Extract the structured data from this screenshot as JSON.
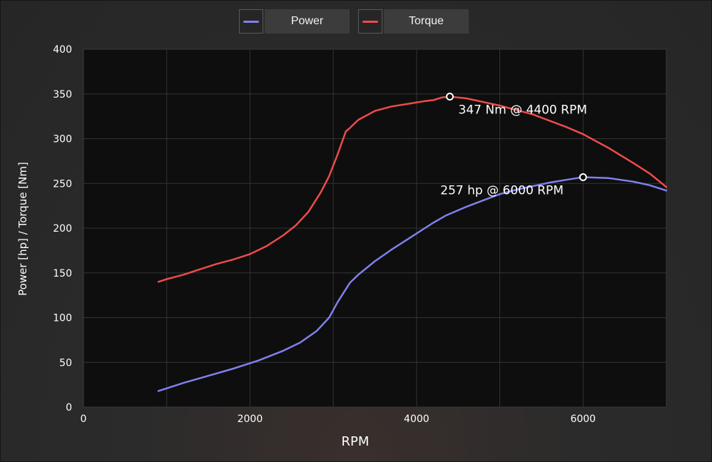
{
  "legend": [
    {
      "label": "Power",
      "color": "#8080ee"
    },
    {
      "label": "Torque",
      "color": "#ee4b4b"
    }
  ],
  "chart_data": {
    "type": "line",
    "xlabel": "RPM",
    "ylabel": "Power [hp] / Torque [Nm]",
    "xlim": [
      0,
      7000
    ],
    "ylim": [
      0,
      400
    ],
    "xticks": [
      0,
      2000,
      4000,
      6000
    ],
    "yticks": [
      0,
      50,
      100,
      150,
      200,
      250,
      300,
      350,
      400
    ],
    "grid": true,
    "legend_position": "top-center",
    "series": [
      {
        "name": "Power",
        "color": "#8080ee",
        "x": [
          900,
          1200,
          1500,
          1800,
          2100,
          2400,
          2600,
          2800,
          2950,
          3050,
          3200,
          3300,
          3500,
          3700,
          3900,
          4100,
          4200,
          4350,
          4600,
          4800,
          5000,
          5200,
          5400,
          5600,
          5800,
          6000,
          6300,
          6600,
          6800,
          7000
        ],
        "y": [
          18,
          27,
          35,
          43,
          52,
          63,
          72,
          85,
          100,
          117,
          139,
          148,
          163,
          176,
          188,
          200,
          206,
          214,
          224,
          231,
          238,
          243,
          247,
          251,
          254,
          257,
          256,
          252,
          248,
          242
        ]
      },
      {
        "name": "Torque",
        "color": "#ee4b4b",
        "x": [
          900,
          1000,
          1200,
          1400,
          1600,
          1800,
          2000,
          2200,
          2400,
          2550,
          2700,
          2850,
          2950,
          3050,
          3150,
          3200,
          3300,
          3500,
          3700,
          3900,
          4100,
          4200,
          4300,
          4400,
          4600,
          4800,
          5000,
          5200,
          5400,
          5600,
          5800,
          6000,
          6300,
          6600,
          6800,
          7000
        ],
        "y": [
          140,
          143,
          148,
          154,
          160,
          165,
          171,
          180,
          192,
          203,
          218,
          240,
          258,
          282,
          308,
          312,
          321,
          331,
          336,
          339,
          342,
          343,
          346,
          347,
          345,
          341,
          337,
          332,
          327,
          320,
          313,
          305,
          290,
          273,
          261,
          246
        ]
      }
    ],
    "annotations": [
      {
        "series": "Torque",
        "x": 4400,
        "y": 347,
        "text": "347 Nm @ 4400 RPM"
      },
      {
        "series": "Power",
        "x": 6000,
        "y": 257,
        "text": "257 hp @ 6000 RPM"
      }
    ]
  }
}
